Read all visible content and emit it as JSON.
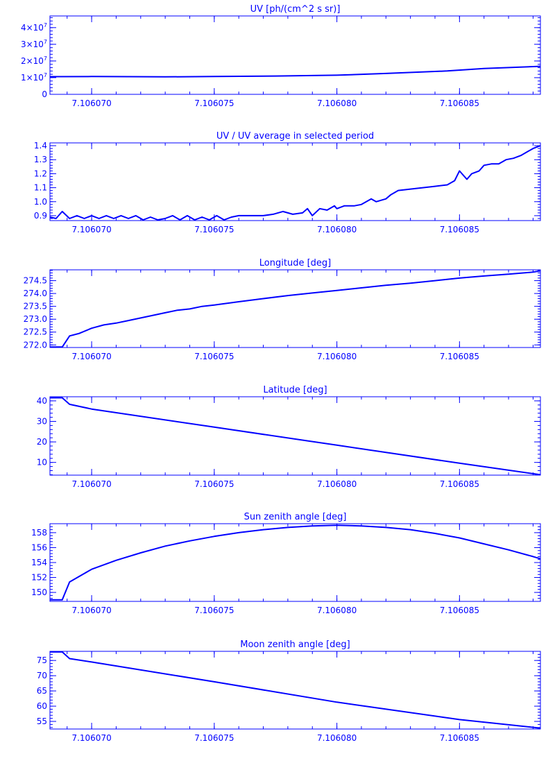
{
  "chart_data": [
    {
      "type": "line",
      "title": "UV [ph/(cm^2 s sr)]",
      "xlim": [
        7.1060683,
        7.1060883
      ],
      "ylim": [
        0,
        47000000
      ],
      "x_ticks": [
        7.10607,
        7.106075,
        7.10608,
        7.106085
      ],
      "x_tick_labels": [
        "7.106070",
        "7.106075",
        "7.106080",
        "7.106085"
      ],
      "y_ticks": [
        0,
        10000000,
        20000000,
        30000000,
        40000000
      ],
      "y_tick_labels": [
        {
          "base": "0",
          "exp": ""
        },
        {
          "base": "1×10",
          "exp": "7"
        },
        {
          "base": "2×10",
          "exp": "7"
        },
        {
          "base": "3×10",
          "exp": "7"
        },
        {
          "base": "4×10",
          "exp": "7"
        }
      ],
      "series": [
        {
          "x": [
            7.1060683,
            7.10607,
            7.106073,
            7.106075,
            7.1060775,
            7.10608,
            7.106082,
            7.1060845,
            7.106086,
            7.1060883
          ],
          "y": [
            10600000,
            10700000,
            10500000,
            10700000,
            11000000,
            11500000,
            12500000,
            14000000,
            15500000,
            16800000
          ]
        }
      ],
      "style": {
        "color": "#0000ff"
      }
    },
    {
      "type": "line",
      "title": "UV / UV average in selected period",
      "xlim": [
        7.1060683,
        7.1060883
      ],
      "ylim": [
        0.865,
        1.42
      ],
      "x_ticks": [
        7.10607,
        7.106075,
        7.10608,
        7.106085
      ],
      "x_tick_labels": [
        "7.106070",
        "7.106075",
        "7.106080",
        "7.106085"
      ],
      "y_ticks": [
        0.9,
        1.0,
        1.1,
        1.2,
        1.3,
        1.4
      ],
      "y_tick_labels": [
        "0.9",
        "1.0",
        "1.1",
        "1.2",
        "1.3",
        "1.4"
      ],
      "series": [
        {
          "x": [
            7.1060683,
            7.10606855,
            7.1060688,
            7.1060691,
            7.1060694,
            7.1060697,
            7.10607,
            7.1060703,
            7.1060706,
            7.1060709,
            7.1060712,
            7.1060715,
            7.1060718,
            7.1060721,
            7.1060724,
            7.1060727,
            7.106073,
            7.1060733,
            7.1060736,
            7.1060739,
            7.1060742,
            7.1060745,
            7.1060748,
            7.1060751,
            7.1060754,
            7.1060757,
            7.106076,
            7.1060763,
            7.1060766,
            7.106077,
            7.1060774,
            7.1060778,
            7.1060782,
            7.1060786,
            7.1060788,
            7.106079,
            7.1060793,
            7.1060796,
            7.1060799,
            7.10608,
            7.1060803,
            7.1060807,
            7.106081,
            7.1060814,
            7.1060816,
            7.106082,
            7.1060822,
            7.1060825,
            7.106083,
            7.1060835,
            7.106084,
            7.1060845,
            7.1060848,
            7.106085,
            7.1060853,
            7.1060855,
            7.1060858,
            7.106086,
            7.1060863,
            7.1060866,
            7.1060869,
            7.1060872,
            7.1060875,
            7.1060877,
            7.106088,
            7.1060883
          ],
          "y": [
            0.89,
            0.88,
            0.93,
            0.88,
            0.9,
            0.88,
            0.9,
            0.88,
            0.9,
            0.88,
            0.9,
            0.88,
            0.9,
            0.87,
            0.89,
            0.87,
            0.88,
            0.9,
            0.87,
            0.9,
            0.87,
            0.89,
            0.87,
            0.9,
            0.87,
            0.89,
            0.9,
            0.9,
            0.9,
            0.9,
            0.91,
            0.93,
            0.91,
            0.92,
            0.95,
            0.9,
            0.95,
            0.94,
            0.97,
            0.95,
            0.97,
            0.97,
            0.98,
            1.02,
            1.0,
            1.02,
            1.05,
            1.08,
            1.09,
            1.1,
            1.11,
            1.12,
            1.15,
            1.22,
            1.16,
            1.2,
            1.22,
            1.26,
            1.27,
            1.27,
            1.3,
            1.31,
            1.33,
            1.35,
            1.38,
            1.4
          ]
        }
      ],
      "style": {
        "color": "#0000ff"
      }
    },
    {
      "type": "line",
      "title": "Longitude [deg]",
      "xlim": [
        7.1060683,
        7.1060883
      ],
      "ylim": [
        271.9,
        274.92
      ],
      "x_ticks": [
        7.10607,
        7.106075,
        7.10608,
        7.106085
      ],
      "x_tick_labels": [
        "7.106070",
        "7.106075",
        "7.106080",
        "7.106085"
      ],
      "y_ticks": [
        272.0,
        272.5,
        273.0,
        273.5,
        274.0,
        274.5
      ],
      "y_tick_labels": [
        "272.0",
        "272.5",
        "273.0",
        "273.5",
        "274.0",
        "274.5"
      ],
      "series": [
        {
          "x": [
            7.1060683,
            7.1060688,
            7.1060691,
            7.1060695,
            7.10607,
            7.1060705,
            7.106071,
            7.1060715,
            7.106072,
            7.1060725,
            7.106073,
            7.1060735,
            7.106074,
            7.1060745,
            7.106075,
            7.106076,
            7.106077,
            7.106078,
            7.106079,
            7.10608,
            7.106081,
            7.106082,
            7.106083,
            7.106084,
            7.106085,
            7.106086,
            7.106087,
            7.106088,
            7.1060883
          ],
          "y": [
            271.92,
            271.92,
            272.35,
            272.45,
            272.65,
            272.78,
            272.85,
            272.95,
            273.05,
            273.15,
            273.25,
            273.35,
            273.4,
            273.5,
            273.55,
            273.68,
            273.8,
            273.92,
            274.02,
            274.12,
            274.22,
            274.32,
            274.4,
            274.5,
            274.6,
            274.68,
            274.75,
            274.83,
            274.88
          ]
        }
      ],
      "style": {
        "color": "#0000ff"
      }
    },
    {
      "type": "line",
      "title": "Latitude [deg]",
      "xlim": [
        7.1060683,
        7.1060883
      ],
      "ylim": [
        3.8,
        42
      ],
      "x_ticks": [
        7.10607,
        7.106075,
        7.10608,
        7.106085
      ],
      "x_tick_labels": [
        "7.106070",
        "7.106075",
        "7.106080",
        "7.106085"
      ],
      "y_ticks": [
        10,
        20,
        30,
        40
      ],
      "y_tick_labels": [
        "10",
        "20",
        "30",
        "40"
      ],
      "series": [
        {
          "x": [
            7.1060683,
            7.1060688,
            7.1060691,
            7.10607,
            7.106075,
            7.10608,
            7.106085,
            7.1060883
          ],
          "y": [
            41.5,
            41.5,
            38.3,
            36.0,
            27.2,
            18.4,
            9.6,
            4.0
          ]
        }
      ],
      "style": {
        "color": "#0000ff"
      }
    },
    {
      "type": "line",
      "title": "Sun zenith angle [deg]",
      "xlim": [
        7.1060683,
        7.1060883
      ],
      "ylim": [
        148.8,
        159.2
      ],
      "x_ticks": [
        7.10607,
        7.106075,
        7.10608,
        7.106085
      ],
      "x_tick_labels": [
        "7.106070",
        "7.106075",
        "7.106080",
        "7.106085"
      ],
      "y_ticks": [
        150,
        152,
        154,
        156,
        158
      ],
      "y_tick_labels": [
        "150",
        "152",
        "154",
        "156",
        "158"
      ],
      "series": [
        {
          "x": [
            7.1060683,
            7.1060688,
            7.1060691,
            7.10607,
            7.106071,
            7.106072,
            7.106073,
            7.106074,
            7.106075,
            7.106076,
            7.106077,
            7.106078,
            7.106079,
            7.10608,
            7.106081,
            7.106082,
            7.106083,
            7.106084,
            7.106085,
            7.106086,
            7.106087,
            7.106088,
            7.1060883
          ],
          "y": [
            149.0,
            149.0,
            151.4,
            153.1,
            154.3,
            155.3,
            156.2,
            156.9,
            157.5,
            158.0,
            158.4,
            158.7,
            158.9,
            159.0,
            158.9,
            158.7,
            158.4,
            157.9,
            157.3,
            156.5,
            155.7,
            154.8,
            154.5
          ]
        }
      ],
      "style": {
        "color": "#0000ff"
      }
    },
    {
      "type": "line",
      "title": "Moon zenith angle [deg]",
      "xlim": [
        7.1060683,
        7.1060883
      ],
      "ylim": [
        52.5,
        78
      ],
      "x_ticks": [
        7.10607,
        7.106075,
        7.10608,
        7.106085
      ],
      "x_tick_labels": [
        "7.106070",
        "7.106075",
        "7.106080",
        "7.106085"
      ],
      "y_ticks": [
        55,
        60,
        65,
        70,
        75
      ],
      "y_tick_labels": [
        "55",
        "60",
        "65",
        "70",
        "75"
      ],
      "series": [
        {
          "x": [
            7.1060683,
            7.1060688,
            7.1060691,
            7.10607,
            7.106075,
            7.10608,
            7.106085,
            7.1060883
          ],
          "y": [
            77.8,
            77.8,
            75.6,
            74.5,
            68.0,
            61.3,
            55.6,
            52.8
          ]
        }
      ],
      "style": {
        "color": "#0000ff"
      }
    }
  ]
}
